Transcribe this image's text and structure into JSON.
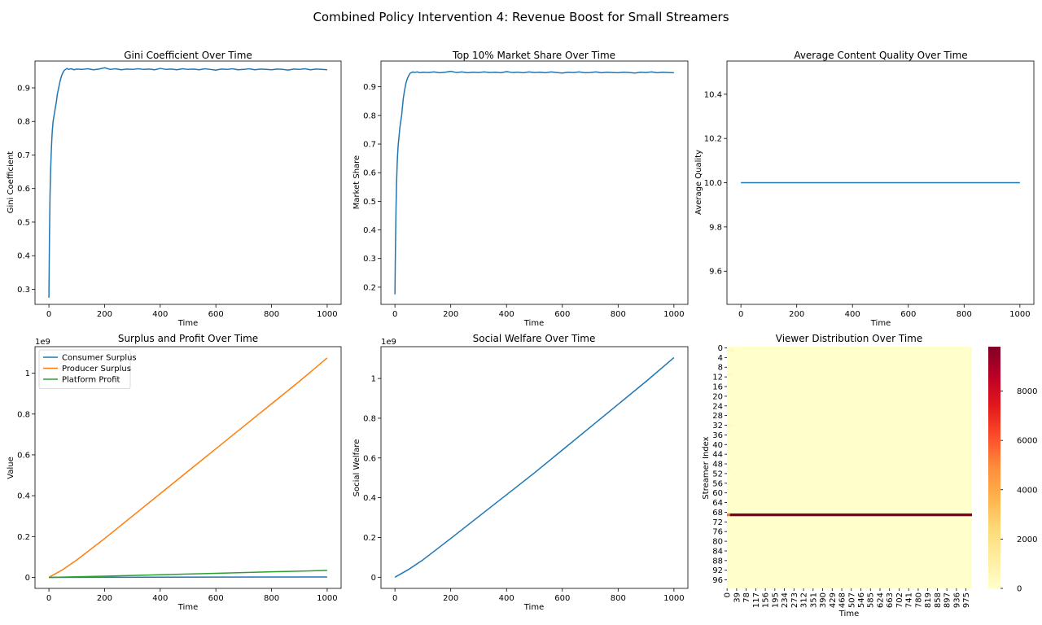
{
  "figure": {
    "suptitle": "Combined Policy Intervention 4: Revenue Boost for Small Streamers",
    "colors": {
      "blue": "#1f77b4",
      "orange": "#ff7f0e",
      "green": "#2ca02c",
      "heat_low": "#ffffcc",
      "heat_high": "#800026"
    }
  },
  "chart_data": [
    {
      "id": "gini",
      "type": "line",
      "title": "Gini Coefficient Over Time",
      "xlabel": "Time",
      "ylabel": "Gini Coefficient",
      "xlim": [
        -50,
        1050
      ],
      "ylim": [
        0.255,
        0.98
      ],
      "xticks": [
        0,
        200,
        400,
        600,
        800,
        1000
      ],
      "yticks": [
        0.3,
        0.4,
        0.5,
        0.6,
        0.7,
        0.8,
        0.9
      ],
      "series": [
        {
          "color": "#1f77b4",
          "x": [
            0,
            2,
            4,
            6,
            8,
            10,
            12,
            15,
            18,
            21,
            24,
            27,
            30,
            35,
            40,
            45,
            50,
            55,
            60,
            65,
            70,
            80,
            90,
            100,
            120,
            140,
            160,
            180,
            200,
            220,
            240,
            260,
            280,
            300,
            320,
            340,
            360,
            380,
            400,
            420,
            440,
            460,
            480,
            500,
            520,
            540,
            560,
            580,
            600,
            620,
            640,
            660,
            680,
            700,
            720,
            740,
            760,
            780,
            800,
            820,
            840,
            860,
            880,
            900,
            920,
            940,
            960,
            980,
            1000
          ],
          "y": [
            0.275,
            0.46,
            0.58,
            0.65,
            0.7,
            0.74,
            0.77,
            0.8,
            0.815,
            0.83,
            0.845,
            0.86,
            0.88,
            0.9,
            0.92,
            0.935,
            0.945,
            0.952,
            0.955,
            0.958,
            0.955,
            0.957,
            0.954,
            0.956,
            0.955,
            0.957,
            0.954,
            0.956,
            0.96,
            0.955,
            0.957,
            0.954,
            0.956,
            0.955,
            0.957,
            0.955,
            0.956,
            0.954,
            0.958,
            0.955,
            0.956,
            0.954,
            0.957,
            0.955,
            0.956,
            0.954,
            0.957,
            0.955,
            0.953,
            0.956,
            0.955,
            0.957,
            0.954,
            0.955,
            0.957,
            0.954,
            0.956,
            0.955,
            0.954,
            0.956,
            0.955,
            0.953,
            0.956,
            0.955,
            0.957,
            0.954,
            0.956,
            0.955,
            0.954
          ]
        }
      ]
    },
    {
      "id": "top10",
      "type": "line",
      "title": "Top 10% Market Share Over Time",
      "xlabel": "Time",
      "ylabel": "Market Share",
      "xlim": [
        -50,
        1050
      ],
      "ylim": [
        0.14,
        0.99
      ],
      "xticks": [
        0,
        200,
        400,
        600,
        800,
        1000
      ],
      "yticks": [
        0.2,
        0.3,
        0.4,
        0.5,
        0.6,
        0.7,
        0.8,
        0.9
      ],
      "series": [
        {
          "color": "#1f77b4",
          "x": [
            0,
            2,
            4,
            6,
            8,
            10,
            12,
            15,
            18,
            21,
            24,
            27,
            30,
            35,
            40,
            45,
            50,
            55,
            60,
            65,
            70,
            80,
            90,
            100,
            120,
            140,
            160,
            180,
            200,
            220,
            240,
            260,
            280,
            300,
            320,
            340,
            360,
            380,
            400,
            420,
            440,
            460,
            480,
            500,
            520,
            540,
            560,
            580,
            600,
            620,
            640,
            660,
            680,
            700,
            720,
            740,
            760,
            780,
            800,
            820,
            840,
            860,
            880,
            900,
            920,
            940,
            960,
            980,
            1000
          ],
          "y": [
            0.175,
            0.35,
            0.48,
            0.57,
            0.63,
            0.67,
            0.7,
            0.73,
            0.76,
            0.78,
            0.8,
            0.83,
            0.86,
            0.89,
            0.915,
            0.93,
            0.94,
            0.948,
            0.95,
            0.952,
            0.95,
            0.952,
            0.949,
            0.951,
            0.95,
            0.952,
            0.949,
            0.951,
            0.954,
            0.95,
            0.952,
            0.949,
            0.951,
            0.95,
            0.952,
            0.95,
            0.951,
            0.949,
            0.953,
            0.95,
            0.951,
            0.949,
            0.952,
            0.95,
            0.951,
            0.949,
            0.952,
            0.95,
            0.948,
            0.951,
            0.95,
            0.952,
            0.949,
            0.95,
            0.952,
            0.949,
            0.951,
            0.95,
            0.949,
            0.951,
            0.95,
            0.948,
            0.951,
            0.95,
            0.952,
            0.949,
            0.951,
            0.95,
            0.949
          ]
        }
      ]
    },
    {
      "id": "quality",
      "type": "line",
      "title": "Average Content Quality Over Time",
      "xlabel": "Time",
      "ylabel": "Average Quality",
      "xlim": [
        -50,
        1050
      ],
      "ylim": [
        9.45,
        10.55
      ],
      "xticks": [
        0,
        200,
        400,
        600,
        800,
        1000
      ],
      "yticks": [
        9.6,
        9.8,
        10.0,
        10.2,
        10.4
      ],
      "ytick_labels": [
        "9.6",
        "9.8",
        "10.0",
        "10.2",
        "10.4"
      ],
      "series": [
        {
          "color": "#1f77b4",
          "x": [
            0,
            1000
          ],
          "y": [
            10.0,
            10.0
          ]
        }
      ]
    },
    {
      "id": "surplus",
      "type": "line",
      "title": "Surplus and Profit Over Time",
      "xlabel": "Time",
      "ylabel": "Value",
      "offset_text": "1e9",
      "scale": 1000000000,
      "xlim": [
        -50,
        1050
      ],
      "ylim": [
        -0.054,
        1.13
      ],
      "xticks": [
        0,
        200,
        400,
        600,
        800,
        1000
      ],
      "yticks": [
        0.0,
        0.2,
        0.4,
        0.6,
        0.8,
        1.0
      ],
      "legend": "upper left",
      "series": [
        {
          "name": "Consumer Surplus",
          "color": "#1f77b4",
          "x": [
            0,
            1000
          ],
          "y": [
            0.0,
            0.002
          ]
        },
        {
          "name": "Producer Surplus",
          "color": "#ff7f0e",
          "x": [
            0,
            50,
            100,
            200,
            300,
            400,
            500,
            600,
            700,
            800,
            900,
            1000
          ],
          "y": [
            0.0,
            0.038,
            0.085,
            0.19,
            0.3,
            0.41,
            0.52,
            0.63,
            0.74,
            0.85,
            0.96,
            1.075
          ]
        },
        {
          "name": "Platform Profit",
          "color": "#2ca02c",
          "x": [
            0,
            200,
            400,
            600,
            800,
            1000
          ],
          "y": [
            0.0,
            0.006,
            0.013,
            0.02,
            0.027,
            0.034
          ]
        }
      ]
    },
    {
      "id": "welfare",
      "type": "line",
      "title": "Social Welfare Over Time",
      "xlabel": "Time",
      "ylabel": "Social Welfare",
      "offset_text": "1e9",
      "scale": 1000000000,
      "xlim": [
        -50,
        1050
      ],
      "ylim": [
        -0.056,
        1.16
      ],
      "xticks": [
        0,
        200,
        400,
        600,
        800,
        1000
      ],
      "yticks": [
        0.0,
        0.2,
        0.4,
        0.6,
        0.8,
        1.0
      ],
      "series": [
        {
          "color": "#1f77b4",
          "x": [
            0,
            50,
            100,
            200,
            300,
            400,
            500,
            600,
            700,
            800,
            900,
            1000
          ],
          "y": [
            0.0,
            0.04,
            0.087,
            0.195,
            0.305,
            0.415,
            0.525,
            0.64,
            0.755,
            0.87,
            0.985,
            1.105
          ]
        }
      ]
    },
    {
      "id": "viewers",
      "type": "heatmap",
      "title": "Viewer Distribution Over Time",
      "xlabel": "Time",
      "ylabel": "Streamer Index",
      "n_rows": 100,
      "n_cols": 1000,
      "xticks": [
        0,
        39,
        78,
        117,
        156,
        195,
        234,
        273,
        312,
        351,
        390,
        429,
        468,
        507,
        546,
        585,
        624,
        663,
        702,
        741,
        780,
        819,
        858,
        897,
        936,
        975
      ],
      "yticks": [
        0,
        4,
        8,
        12,
        16,
        20,
        24,
        28,
        32,
        36,
        40,
        44,
        48,
        52,
        56,
        60,
        64,
        68,
        72,
        76,
        80,
        84,
        88,
        92,
        96
      ],
      "vmin": 0,
      "vmax": 9800,
      "colorbar_ticks": [
        0,
        2000,
        4000,
        6000,
        8000
      ],
      "background_value": 0,
      "bands": [
        {
          "row": 69,
          "from": 0,
          "to": 12,
          "value": 5500
        },
        {
          "row": 69,
          "from": 12,
          "to": 1000,
          "value": 9800
        },
        {
          "row": 1,
          "from": 0,
          "to": 30,
          "value": 400
        },
        {
          "row": 11,
          "from": 0,
          "to": 25,
          "value": 350
        },
        {
          "row": 32,
          "from": 0,
          "to": 30,
          "value": 300
        },
        {
          "row": 50,
          "from": 0,
          "to": 20,
          "value": 300
        }
      ]
    }
  ]
}
